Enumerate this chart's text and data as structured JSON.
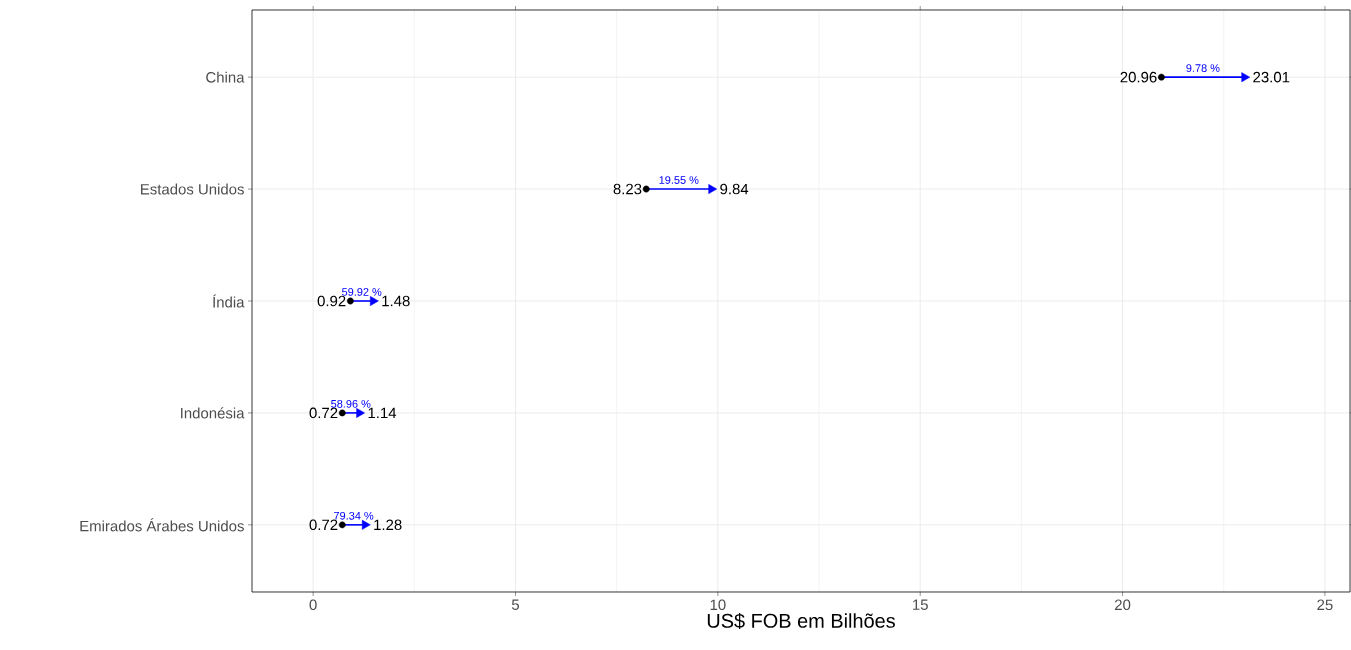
{
  "chart_data": {
    "type": "scatter",
    "orientation": "horizontal",
    "xlabel": "US$ FOB em Bilhões",
    "categories": [
      "China",
      "Estados Unidos",
      "Índia",
      "Indonésia",
      "Emirados Árabes Unidos"
    ],
    "series": [
      {
        "color": "#000000",
        "marker": "circle",
        "values": [
          20.96,
          8.23,
          0.92,
          0.72,
          0.72
        ]
      },
      {
        "color": "#0000ff",
        "marker": "triangle",
        "values": [
          23.01,
          9.84,
          1.48,
          1.14,
          1.28
        ]
      }
    ],
    "data_labels": true,
    "annotations": [
      "9.78 %",
      "19.55 %",
      "59.92 %",
      "58.96 %",
      "79.34 %"
    ],
    "xlim": [
      -1.51,
      25.62
    ],
    "xticks": [
      0,
      5,
      10,
      15,
      20,
      25
    ],
    "grid": true
  }
}
